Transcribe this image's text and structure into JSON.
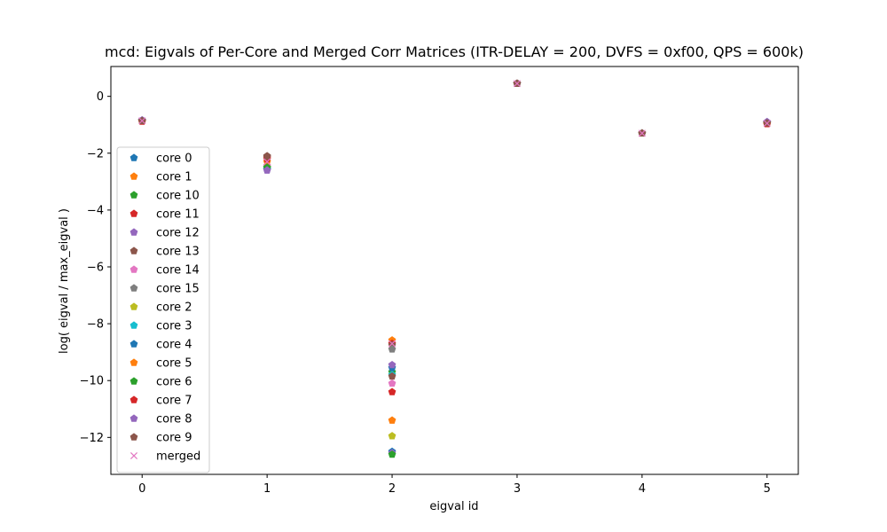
{
  "chart_data": {
    "type": "scatter",
    "title": "mcd: Eigvals of Per-Core and Merged Corr Matrices (ITR-DELAY = 200, DVFS = 0xf00, QPS = 600k)",
    "xlabel": "eigval id",
    "ylabel": "log( eigval / max_eigval )",
    "xlim": [
      -0.25,
      5.25
    ],
    "ylim": [
      -13.3,
      1.05
    ],
    "xticks": [
      0,
      1,
      2,
      3,
      4,
      5
    ],
    "yticks": [
      0,
      -2,
      -4,
      -6,
      -8,
      -10,
      -12
    ],
    "grid": false,
    "legend_position": "left",
    "series": [
      {
        "name": "core 0",
        "color": "#1f77b4",
        "marker": "pentagon",
        "x": [
          0,
          1,
          2,
          3,
          4,
          5
        ],
        "y": [
          -0.85,
          -2.55,
          -12.5,
          0.45,
          -1.3,
          -0.92
        ]
      },
      {
        "name": "core 1",
        "color": "#ff7f0e",
        "marker": "pentagon",
        "x": [
          0,
          1,
          2,
          3,
          4,
          5
        ],
        "y": [
          -0.87,
          -2.2,
          -8.58,
          0.45,
          -1.3,
          -0.95
        ]
      },
      {
        "name": "core 10",
        "color": "#2ca02c",
        "marker": "pentagon",
        "x": [
          0,
          1,
          2,
          3,
          4,
          5
        ],
        "y": [
          -0.86,
          -2.5,
          -9.7,
          0.45,
          -1.3,
          -0.93
        ]
      },
      {
        "name": "core 11",
        "color": "#d62728",
        "marker": "pentagon",
        "x": [
          0,
          1,
          2,
          3,
          4,
          5
        ],
        "y": [
          -0.88,
          -2.15,
          -8.7,
          0.45,
          -1.3,
          -0.97
        ]
      },
      {
        "name": "core 12",
        "color": "#9467bd",
        "marker": "pentagon",
        "x": [
          0,
          1,
          2,
          3,
          4,
          5
        ],
        "y": [
          -0.84,
          -2.6,
          -12.55,
          0.45,
          -1.3,
          -0.9
        ]
      },
      {
        "name": "core 13",
        "color": "#8c564b",
        "marker": "pentagon",
        "x": [
          0,
          1,
          2,
          3,
          4,
          5
        ],
        "y": [
          -0.86,
          -2.1,
          -8.75,
          0.45,
          -1.3,
          -0.94
        ]
      },
      {
        "name": "core 14",
        "color": "#e377c2",
        "marker": "pentagon",
        "x": [
          0,
          1,
          2,
          3,
          4,
          5
        ],
        "y": [
          -0.85,
          -2.45,
          -10.1,
          0.45,
          -1.3,
          -0.92
        ]
      },
      {
        "name": "core 15",
        "color": "#7f7f7f",
        "marker": "pentagon",
        "x": [
          0,
          1,
          2,
          3,
          4,
          5
        ],
        "y": [
          -0.86,
          -2.55,
          -8.9,
          0.45,
          -1.3,
          -0.93
        ]
      },
      {
        "name": "core 2",
        "color": "#bcbd22",
        "marker": "pentagon",
        "x": [
          0,
          1,
          2,
          3,
          4,
          5
        ],
        "y": [
          -0.86,
          -2.5,
          -11.95,
          0.45,
          -1.3,
          -0.93
        ]
      },
      {
        "name": "core 3",
        "color": "#17becf",
        "marker": "pentagon",
        "x": [
          0,
          1,
          2,
          3,
          4,
          5
        ],
        "y": [
          -0.85,
          -2.55,
          -9.8,
          0.45,
          -1.3,
          -0.92
        ]
      },
      {
        "name": "core 4",
        "color": "#1f77b4",
        "marker": "pentagon",
        "x": [
          0,
          1,
          2,
          3,
          4,
          5
        ],
        "y": [
          -0.85,
          -2.58,
          -9.55,
          0.45,
          -1.3,
          -0.92
        ]
      },
      {
        "name": "core 5",
        "color": "#ff7f0e",
        "marker": "pentagon",
        "x": [
          0,
          1,
          2,
          3,
          4,
          5
        ],
        "y": [
          -0.87,
          -2.3,
          -11.4,
          0.45,
          -1.3,
          -0.95
        ]
      },
      {
        "name": "core 6",
        "color": "#2ca02c",
        "marker": "pentagon",
        "x": [
          0,
          1,
          2,
          3,
          4,
          5
        ],
        "y": [
          -0.86,
          -2.5,
          -12.6,
          0.45,
          -1.3,
          -0.93
        ]
      },
      {
        "name": "core 7",
        "color": "#d62728",
        "marker": "pentagon",
        "x": [
          0,
          1,
          2,
          3,
          4,
          5
        ],
        "y": [
          -0.88,
          -2.2,
          -10.4,
          0.45,
          -1.3,
          -0.97
        ]
      },
      {
        "name": "core 8",
        "color": "#9467bd",
        "marker": "pentagon",
        "x": [
          0,
          1,
          2,
          3,
          4,
          5
        ],
        "y": [
          -0.84,
          -2.6,
          -9.45,
          0.45,
          -1.3,
          -0.9
        ]
      },
      {
        "name": "core 9",
        "color": "#8c564b",
        "marker": "pentagon",
        "x": [
          0,
          1,
          2,
          3,
          4,
          5
        ],
        "y": [
          -0.86,
          -2.12,
          -9.85,
          0.45,
          -1.3,
          -0.94
        ]
      },
      {
        "name": "merged",
        "color": "#e377c2",
        "marker": "x",
        "x": [
          0,
          1,
          2,
          3,
          4,
          5
        ],
        "y": [
          -0.86,
          -2.3,
          -8.7,
          0.45,
          -1.3,
          -0.95
        ]
      }
    ]
  }
}
